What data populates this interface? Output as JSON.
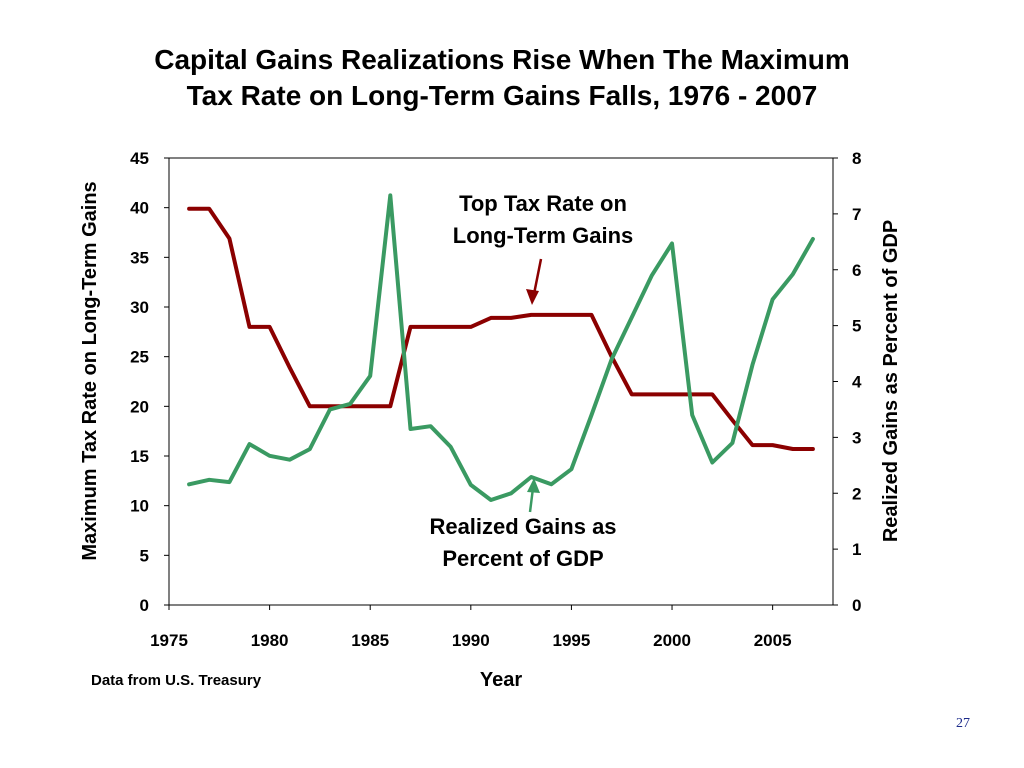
{
  "slide": {
    "title_line1": "Capital Gains Realizations Rise When The Maximum",
    "title_line2": "Tax Rate on Long-Term Gains Falls, 1976 - 2007",
    "source_note": "Data from U.S. Treasury",
    "page_number": "27"
  },
  "chart_data": {
    "type": "line",
    "title": "Capital Gains Realizations Rise When The Maximum Tax Rate on Long-Term Gains Falls, 1976 - 2007",
    "xlabel": "Year",
    "ylabel_left": "Maximum Tax Rate on Long-Term Gains",
    "ylabel_right": "Realized Gains as Percent of GDP",
    "xlim": [
      1975,
      2008
    ],
    "ylim_left": [
      0,
      45
    ],
    "ylim_right": [
      0,
      8
    ],
    "x_ticks": [
      1975,
      1980,
      1985,
      1990,
      1995,
      2000,
      2005
    ],
    "y_ticks_left": [
      0,
      5,
      10,
      15,
      20,
      25,
      30,
      35,
      40,
      45
    ],
    "y_ticks_right": [
      0,
      1,
      2,
      3,
      4,
      5,
      6,
      7,
      8
    ],
    "grid": false,
    "x": [
      1976,
      1977,
      1978,
      1979,
      1980,
      1981,
      1982,
      1983,
      1984,
      1985,
      1986,
      1987,
      1988,
      1989,
      1990,
      1991,
      1992,
      1993,
      1994,
      1995,
      1996,
      1997,
      1998,
      1999,
      2000,
      2001,
      2002,
      2003,
      2004,
      2005,
      2006,
      2007
    ],
    "series": [
      {
        "name": "Top Tax Rate on Long-Term Gains",
        "axis": "left",
        "color": "#8b0000",
        "values": [
          39.9,
          39.9,
          36.9,
          28.0,
          28.0,
          23.9,
          20.0,
          20.0,
          20.0,
          20.0,
          20.0,
          28.0,
          28.0,
          28.0,
          28.0,
          28.9,
          28.9,
          29.2,
          29.2,
          29.2,
          29.2,
          25.0,
          21.2,
          21.2,
          21.2,
          21.2,
          21.2,
          18.6,
          16.1,
          16.1,
          15.7,
          15.7
        ]
      },
      {
        "name": "Realized Gains as Percent of GDP",
        "axis": "right",
        "color": "#3a9a62",
        "values": [
          2.16,
          2.24,
          2.2,
          2.88,
          2.67,
          2.6,
          2.79,
          3.5,
          3.6,
          4.1,
          7.33,
          3.15,
          3.2,
          2.83,
          2.15,
          1.88,
          2.0,
          2.29,
          2.16,
          2.43,
          3.4,
          4.4,
          5.15,
          5.9,
          6.47,
          3.4,
          2.55,
          2.9,
          4.3,
          5.47,
          5.92,
          6.55
        ]
      }
    ],
    "annotations": {
      "tax_rate_line1": "Top Tax Rate on",
      "tax_rate_line2": "Long-Term Gains",
      "gains_line1": "Realized Gains as",
      "gains_line2": "Percent of GDP"
    }
  }
}
